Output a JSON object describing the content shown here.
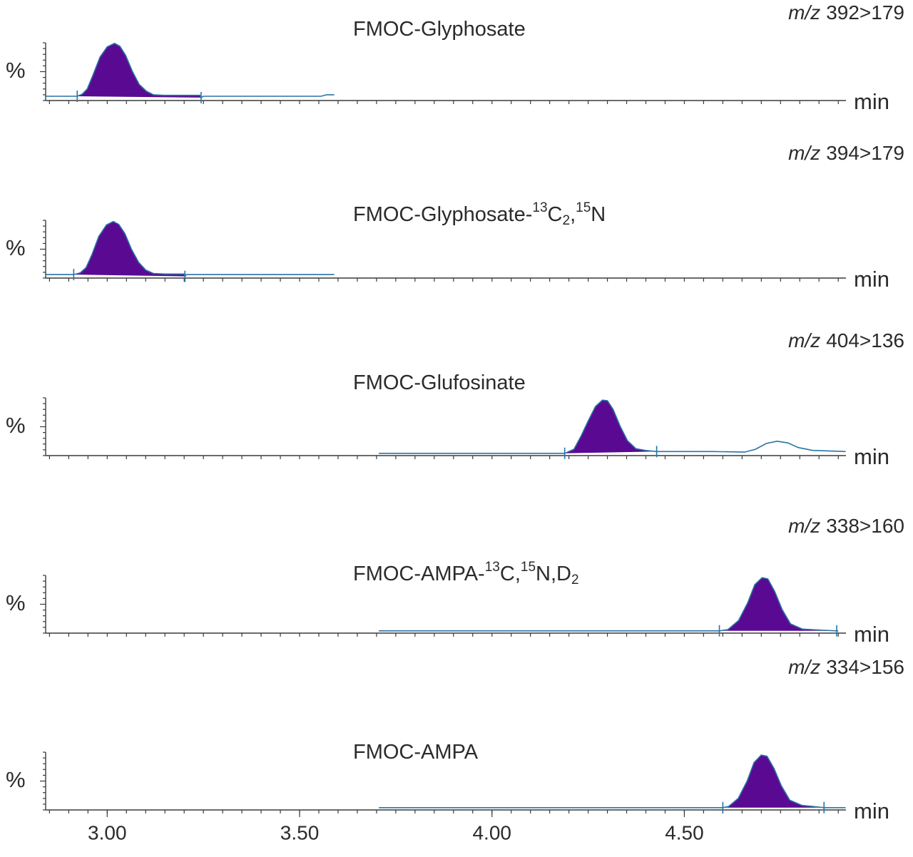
{
  "chart_data": [
    {
      "type": "line",
      "title_parts": [
        {
          "text": "FMOC-Glyphosate"
        }
      ],
      "mz_label": "m/z",
      "transition": "392>179",
      "xlabel": "min",
      "ylabel": "%",
      "xlim": [
        2.84,
        4.92
      ],
      "ylim": [
        0,
        100
      ],
      "yminor_ticks": [
        0,
        10,
        20,
        30,
        40,
        50,
        60,
        70,
        80,
        90,
        100
      ],
      "line_color": "#2874a6",
      "fill_color": "#5a0a92",
      "x": [
        2.841,
        2.922,
        2.935,
        2.948,
        2.963,
        2.981,
        3.0,
        3.019,
        3.033,
        3.048,
        3.065,
        3.083,
        3.102,
        3.12,
        3.148,
        3.241,
        3.244,
        3.25,
        3.556,
        3.57,
        3.59
      ],
      "values": [
        7.4,
        7.4,
        11,
        20,
        44,
        75,
        93,
        99,
        94,
        78,
        51,
        28,
        16,
        10,
        9,
        9,
        5,
        7.4,
        7.4,
        10,
        10
      ],
      "integration": [
        2.922,
        3.244
      ]
    },
    {
      "type": "line",
      "title_parts": [
        {
          "text": "FMOC-Glyphosate-"
        },
        {
          "text": "13",
          "shift": "super"
        },
        {
          "text": "C"
        },
        {
          "text": "2",
          "shift": "sub"
        },
        {
          "text": ","
        },
        {
          "text": "15",
          "shift": "super"
        },
        {
          "text": "N"
        }
      ],
      "mz_label": "m/z",
      "transition": "394>179",
      "xlabel": "min",
      "ylabel": "%",
      "xlim": [
        2.84,
        4.92
      ],
      "ylim": [
        0,
        100
      ],
      "yminor_ticks": [
        0,
        10,
        20,
        30,
        40,
        50,
        60,
        70,
        80,
        90,
        100
      ],
      "line_color": "#2874a6",
      "fill_color": "#5a0a92",
      "x": [
        2.841,
        2.913,
        2.93,
        2.945,
        2.96,
        2.978,
        2.998,
        3.016,
        3.03,
        3.046,
        3.063,
        3.082,
        3.1,
        3.12,
        3.15,
        3.2,
        3.202,
        3.206,
        3.59
      ],
      "values": [
        6,
        6,
        9,
        18,
        40,
        72,
        92,
        98,
        93,
        77,
        50,
        27,
        14,
        8,
        7,
        7,
        3,
        6,
        6
      ],
      "integration": [
        2.913,
        3.202
      ]
    },
    {
      "type": "line",
      "title_parts": [
        {
          "text": "FMOC-Glufosinate"
        }
      ],
      "mz_label": "m/z",
      "transition": "404>136",
      "xlabel": "min",
      "ylabel": "%",
      "xlim": [
        2.84,
        4.92
      ],
      "ylim": [
        0,
        100
      ],
      "yminor_ticks": [
        0,
        10,
        20,
        30,
        40,
        50,
        60,
        70,
        80,
        90,
        100
      ],
      "line_color": "#2874a6",
      "fill_color": "#5a0a92",
      "x": [
        3.706,
        4.189,
        4.213,
        4.231,
        4.25,
        4.269,
        4.287,
        4.3,
        4.315,
        4.333,
        4.352,
        4.374,
        4.398,
        4.428,
        4.574,
        4.657,
        4.685,
        4.713,
        4.741,
        4.769,
        4.796,
        4.833,
        4.919
      ],
      "values": [
        4,
        4,
        11,
        33,
        60,
        85,
        96,
        95,
        80,
        51,
        26,
        12,
        9,
        7,
        7,
        6,
        11,
        21,
        25,
        22,
        14,
        9,
        7
      ],
      "integration": [
        4.189,
        4.428
      ]
    },
    {
      "type": "line",
      "title_parts": [
        {
          "text": "FMOC-AMPA-"
        },
        {
          "text": "13",
          "shift": "super"
        },
        {
          "text": "C,"
        },
        {
          "text": "15",
          "shift": "super"
        },
        {
          "text": "N,D"
        },
        {
          "text": "2",
          "shift": "sub"
        }
      ],
      "mz_label": "m/z",
      "transition": "338>160",
      "xlabel": "min",
      "ylabel": "%",
      "xlim": [
        2.84,
        4.92
      ],
      "ylim": [
        0,
        100
      ],
      "yminor_ticks": [
        0,
        10,
        20,
        30,
        40,
        50,
        60,
        70,
        80,
        90,
        100
      ],
      "line_color": "#2874a6",
      "fill_color": "#5a0a92",
      "x": [
        3.706,
        4.591,
        4.613,
        4.641,
        4.665,
        4.683,
        4.702,
        4.717,
        4.735,
        4.754,
        4.776,
        4.807,
        4.863,
        4.896,
        4.9
      ],
      "values": [
        4,
        4,
        6,
        22,
        53,
        84,
        96,
        94,
        72,
        41,
        16,
        7,
        5,
        4,
        4
      ],
      "integration": [
        4.591,
        4.896
      ]
    },
    {
      "type": "line",
      "title_parts": [
        {
          "text": "FMOC-AMPA"
        }
      ],
      "mz_label": "m/z",
      "transition": "334>156",
      "xlabel": "min",
      "ylabel": "%",
      "xlim": [
        2.84,
        4.92
      ],
      "ylim": [
        0,
        100
      ],
      "yminor_ticks": [
        0,
        10,
        20,
        30,
        40,
        50,
        60,
        70,
        80,
        90,
        100
      ],
      "line_color": "#2874a6",
      "fill_color": "#5a0a92",
      "x": [
        3.706,
        4.6,
        4.615,
        4.64,
        4.663,
        4.681,
        4.7,
        4.715,
        4.733,
        4.752,
        4.774,
        4.805,
        4.85,
        4.863,
        4.919
      ],
      "values": [
        4,
        4,
        6,
        20,
        50,
        82,
        95,
        93,
        72,
        42,
        17,
        8,
        5,
        4,
        4
      ],
      "integration": [
        4.6,
        4.863
      ],
      "xticks": [
        {
          "value": 3,
          "label": "3.00"
        },
        {
          "value": 3.5,
          "label": "3.50"
        },
        {
          "value": 4,
          "label": "4.00"
        },
        {
          "value": 4.5,
          "label": "4.50"
        }
      ],
      "xminor_ticks": [
        2.85,
        2.9,
        2.95,
        3.0,
        3.05,
        3.1,
        3.15,
        3.2,
        3.25,
        3.3,
        3.35,
        3.4,
        3.45,
        3.5,
        3.55,
        3.6,
        3.65,
        3.7,
        3.75,
        3.8,
        3.85,
        3.9,
        3.95,
        4.0,
        4.05,
        4.1,
        4.15,
        4.2,
        4.25,
        4.3,
        4.35,
        4.4,
        4.45,
        4.5,
        4.55,
        4.6,
        4.65,
        4.7,
        4.75,
        4.8,
        4.85,
        4.9
      ]
    }
  ]
}
